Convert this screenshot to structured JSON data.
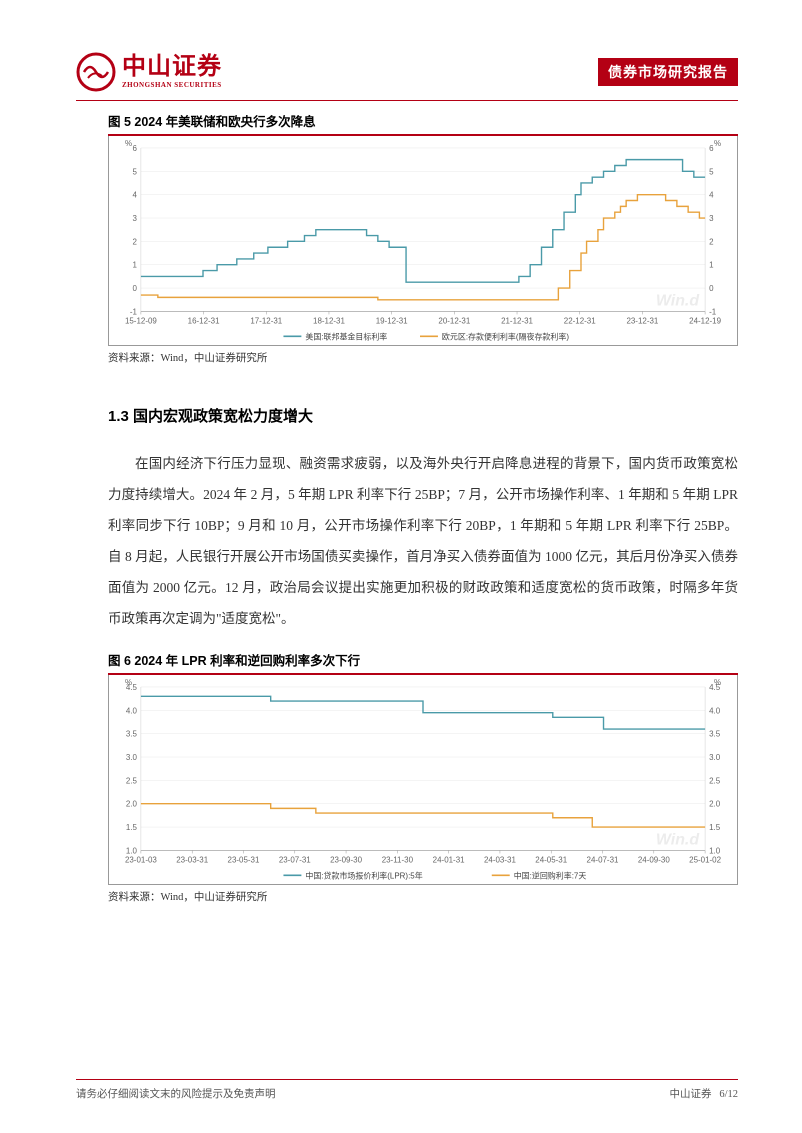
{
  "header": {
    "logo_cn": "中山证券",
    "logo_en": "ZHONGSHAN SECURITIES",
    "report_tag": "债券市场研究报告",
    "logo_color": "#b40014"
  },
  "figure5": {
    "title": "图 5    2024 年美联储和欧央行多次降息",
    "source": "资料来源：Wind，中山证券研究所",
    "type": "step-line",
    "y_unit": "%",
    "ylim": [
      -1,
      6
    ],
    "yticks": [
      -1,
      0,
      1,
      2,
      3,
      4,
      5,
      6
    ],
    "x_labels": [
      "15-12-09",
      "16-12-31",
      "17-12-31",
      "18-12-31",
      "19-12-31",
      "20-12-31",
      "21-12-31",
      "22-12-31",
      "23-12-31",
      "24-12-19"
    ],
    "grid_color": "#e8e8e8",
    "background_color": "#ffffff",
    "watermark": "Win.d",
    "series": [
      {
        "name": "美国:联邦基金目标利率",
        "color": "#4a9aa8",
        "width": 1.4,
        "points": [
          [
            0.0,
            0.5
          ],
          [
            0.11,
            0.5
          ],
          [
            0.11,
            0.75
          ],
          [
            0.135,
            0.75
          ],
          [
            0.135,
            1.0
          ],
          [
            0.17,
            1.0
          ],
          [
            0.17,
            1.25
          ],
          [
            0.2,
            1.25
          ],
          [
            0.2,
            1.5
          ],
          [
            0.225,
            1.5
          ],
          [
            0.225,
            1.75
          ],
          [
            0.26,
            1.75
          ],
          [
            0.26,
            2.0
          ],
          [
            0.29,
            2.0
          ],
          [
            0.29,
            2.25
          ],
          [
            0.31,
            2.25
          ],
          [
            0.31,
            2.5
          ],
          [
            0.4,
            2.5
          ],
          [
            0.4,
            2.25
          ],
          [
            0.42,
            2.25
          ],
          [
            0.42,
            2.0
          ],
          [
            0.44,
            2.0
          ],
          [
            0.44,
            1.75
          ],
          [
            0.47,
            1.75
          ],
          [
            0.47,
            0.25
          ],
          [
            0.67,
            0.25
          ],
          [
            0.67,
            0.5
          ],
          [
            0.69,
            0.5
          ],
          [
            0.69,
            1.0
          ],
          [
            0.71,
            1.0
          ],
          [
            0.71,
            1.75
          ],
          [
            0.73,
            1.75
          ],
          [
            0.73,
            2.5
          ],
          [
            0.75,
            2.5
          ],
          [
            0.75,
            3.25
          ],
          [
            0.77,
            3.25
          ],
          [
            0.77,
            4.0
          ],
          [
            0.78,
            4.0
          ],
          [
            0.78,
            4.5
          ],
          [
            0.8,
            4.5
          ],
          [
            0.8,
            4.75
          ],
          [
            0.82,
            4.75
          ],
          [
            0.82,
            5.0
          ],
          [
            0.84,
            5.0
          ],
          [
            0.84,
            5.25
          ],
          [
            0.86,
            5.25
          ],
          [
            0.86,
            5.5
          ],
          [
            0.96,
            5.5
          ],
          [
            0.96,
            5.0
          ],
          [
            0.98,
            5.0
          ],
          [
            0.98,
            4.75
          ],
          [
            1.0,
            4.75
          ]
        ]
      },
      {
        "name": "欧元区:存款便利利率(隔夜存款利率)",
        "color": "#e8a23c",
        "width": 1.4,
        "points": [
          [
            0.0,
            -0.3
          ],
          [
            0.03,
            -0.3
          ],
          [
            0.03,
            -0.4
          ],
          [
            0.42,
            -0.4
          ],
          [
            0.42,
            -0.5
          ],
          [
            0.74,
            -0.5
          ],
          [
            0.74,
            0.0
          ],
          [
            0.76,
            0.0
          ],
          [
            0.76,
            0.75
          ],
          [
            0.78,
            0.75
          ],
          [
            0.78,
            1.5
          ],
          [
            0.79,
            1.5
          ],
          [
            0.79,
            2.0
          ],
          [
            0.81,
            2.0
          ],
          [
            0.81,
            2.5
          ],
          [
            0.82,
            2.5
          ],
          [
            0.82,
            3.0
          ],
          [
            0.84,
            3.0
          ],
          [
            0.84,
            3.25
          ],
          [
            0.85,
            3.25
          ],
          [
            0.85,
            3.5
          ],
          [
            0.86,
            3.5
          ],
          [
            0.86,
            3.75
          ],
          [
            0.88,
            3.75
          ],
          [
            0.88,
            4.0
          ],
          [
            0.93,
            4.0
          ],
          [
            0.93,
            3.75
          ],
          [
            0.95,
            3.75
          ],
          [
            0.95,
            3.5
          ],
          [
            0.97,
            3.5
          ],
          [
            0.97,
            3.25
          ],
          [
            0.99,
            3.25
          ],
          [
            0.99,
            3.0
          ],
          [
            1.0,
            3.0
          ]
        ]
      }
    ]
  },
  "section": {
    "heading": "1.3  国内宏观政策宽松力度增大",
    "paragraph": "在国内经济下行压力显现、融资需求疲弱，以及海外央行开启降息进程的背景下，国内货币政策宽松力度持续增大。2024 年 2 月，5 年期 LPR 利率下行 25BP；7 月，公开市场操作利率、1 年期和 5 年期 LPR 利率同步下行 10BP；9 月和 10 月，公开市场操作利率下行 20BP，1 年期和 5 年期 LPR 利率下行 25BP。自 8 月起，人民银行开展公开市场国债买卖操作，首月净买入债券面值为 1000 亿元，其后月份净买入债券面值为 2000 亿元。12 月，政治局会议提出实施更加积极的财政政策和适度宽松的货币政策，时隔多年货币政策再次定调为\"适度宽松\"。"
  },
  "figure6": {
    "title": "图 6    2024 年 LPR 利率和逆回购利率多次下行",
    "source": "资料来源：Wind，中山证券研究所",
    "type": "step-line",
    "y_unit": "%",
    "ylim": [
      1.0,
      4.5
    ],
    "yticks": [
      1.0,
      1.5,
      2.0,
      2.5,
      3.0,
      3.5,
      4.0,
      4.5
    ],
    "x_labels": [
      "23-01-03",
      "23-03-31",
      "23-05-31",
      "23-07-31",
      "23-09-30",
      "23-11-30",
      "24-01-31",
      "24-03-31",
      "24-05-31",
      "24-07-31",
      "24-09-30",
      "25-01-02"
    ],
    "grid_color": "#e8e8e8",
    "background_color": "#ffffff",
    "watermark": "Win.d",
    "series": [
      {
        "name": "中国:贷款市场报价利率(LPR):5年",
        "color": "#4a9aa8",
        "width": 1.4,
        "points": [
          [
            0.0,
            4.3
          ],
          [
            0.23,
            4.3
          ],
          [
            0.23,
            4.2
          ],
          [
            0.5,
            4.2
          ],
          [
            0.5,
            3.95
          ],
          [
            0.73,
            3.95
          ],
          [
            0.73,
            3.85
          ],
          [
            0.82,
            3.85
          ],
          [
            0.82,
            3.6
          ],
          [
            1.0,
            3.6
          ]
        ]
      },
      {
        "name": "中国:逆回购利率:7天",
        "color": "#e8a23c",
        "width": 1.4,
        "points": [
          [
            0.0,
            2.0
          ],
          [
            0.23,
            2.0
          ],
          [
            0.23,
            1.9
          ],
          [
            0.31,
            1.9
          ],
          [
            0.31,
            1.8
          ],
          [
            0.73,
            1.8
          ],
          [
            0.73,
            1.7
          ],
          [
            0.8,
            1.7
          ],
          [
            0.8,
            1.5
          ],
          [
            1.0,
            1.5
          ]
        ]
      }
    ]
  },
  "footer": {
    "disclaimer": "请务必仔细阅读文末的风险提示及免责声明",
    "company": "中山证券",
    "page": "6/12"
  }
}
